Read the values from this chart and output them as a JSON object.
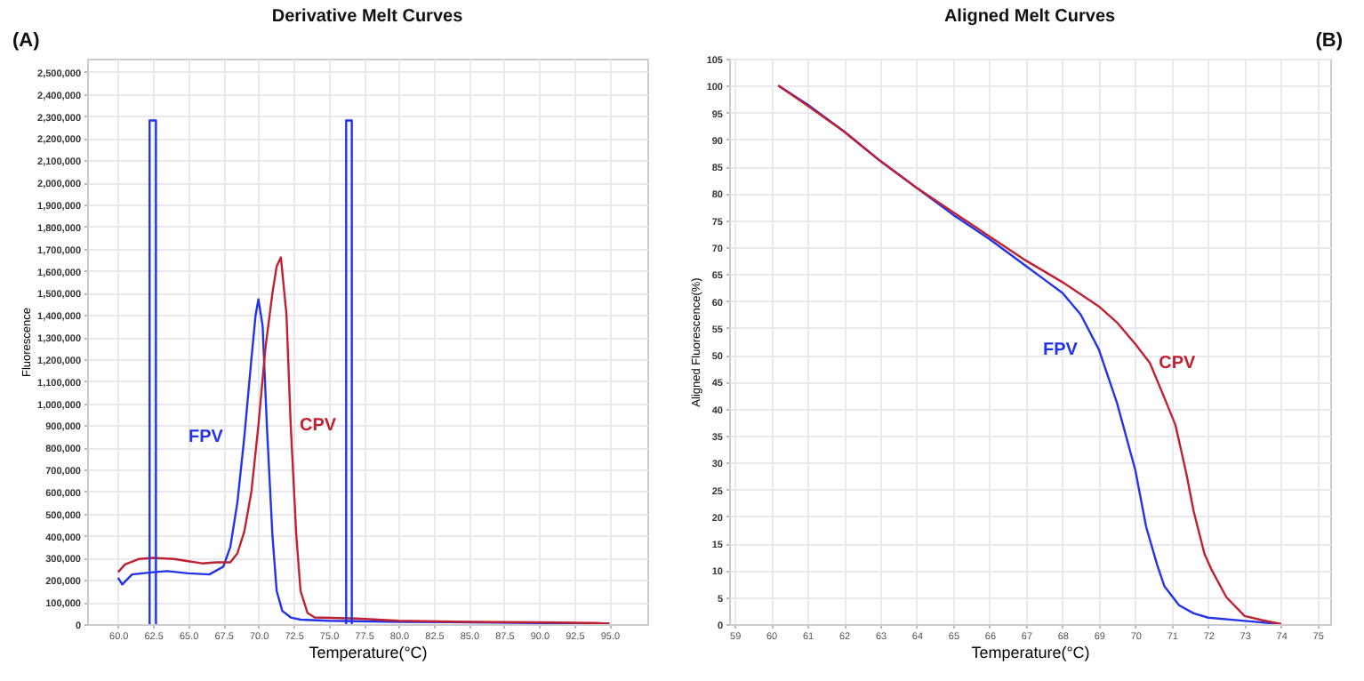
{
  "chart_data": [
    {
      "type": "line",
      "title": "Derivative Melt Curves",
      "subtitle": "(A)",
      "xlabel": "Temperature(°C)",
      "ylabel": "Fluorescence",
      "xlim": [
        57.8,
        97.7
      ],
      "ylim": [
        0,
        2560000
      ],
      "xticks": [
        {
          "value": 60,
          "label": "60.0"
        },
        {
          "value": 62.5,
          "label": "62.5"
        },
        {
          "value": 65,
          "label": "65.0"
        },
        {
          "value": 67.5,
          "label": "67.5"
        },
        {
          "value": 70,
          "label": "70.0"
        },
        {
          "value": 72.5,
          "label": "72.5"
        },
        {
          "value": 75,
          "label": "75.0"
        },
        {
          "value": 77.5,
          "label": "77.5"
        },
        {
          "value": 80,
          "label": "80.0"
        },
        {
          "value": 82.5,
          "label": "82.5"
        },
        {
          "value": 85,
          "label": "85.0"
        },
        {
          "value": 87.5,
          "label": "87.5"
        },
        {
          "value": 90,
          "label": "90.0"
        },
        {
          "value": 92.5,
          "label": "92.5"
        },
        {
          "value": 95,
          "label": "95.0"
        }
      ],
      "yticks": [
        0,
        {
          "value": 100000,
          "label": "100,000"
        },
        {
          "value": 200000,
          "label": "200,000"
        },
        {
          "value": 300000,
          "label": "300,000"
        },
        {
          "value": 400000,
          "label": "400,000"
        },
        {
          "value": 500000,
          "label": "500,000"
        },
        {
          "value": 600000,
          "label": "600,000"
        },
        {
          "value": 700000,
          "label": "700,000"
        },
        {
          "value": 800000,
          "label": "800,000"
        },
        {
          "value": 900000,
          "label": "900,000"
        },
        {
          "value": 1000000,
          "label": "1,000,000"
        },
        {
          "value": 1100000,
          "label": "1,100,000"
        },
        {
          "value": 1200000,
          "label": "1,200,000"
        },
        {
          "value": 1300000,
          "label": "1,300,000"
        },
        {
          "value": 1400000,
          "label": "1,400,000"
        },
        {
          "value": 1500000,
          "label": "1,500,000"
        },
        {
          "value": 1600000,
          "label": "1,600,000"
        },
        {
          "value": 1700000,
          "label": "1,700,000"
        },
        {
          "value": 1800000,
          "label": "1,800,000"
        },
        {
          "value": 1900000,
          "label": "1,900,000"
        },
        {
          "value": 2000000,
          "label": "2,000,000"
        },
        {
          "value": 2100000,
          "label": "2,100,000"
        },
        {
          "value": 2200000,
          "label": "2,200,000"
        },
        {
          "value": 2300000,
          "label": "2,300,000"
        },
        {
          "value": 2400000,
          "label": "2,400,000"
        },
        {
          "value": 2500000,
          "label": "2,500,000"
        }
      ],
      "grid": true,
      "marker": "none",
      "line_style": "solid",
      "series": [
        {
          "name": "FPV",
          "color": "#2233ee",
          "x": [
            60,
            60.3,
            61,
            62.5,
            63.5,
            65,
            66.5,
            67.5,
            68,
            68.5,
            69,
            69.5,
            69.8,
            70,
            70.3,
            70.6,
            71,
            71.3,
            71.7,
            72.3,
            73,
            75,
            80,
            85,
            90,
            95
          ],
          "values": [
            210000,
            180000,
            225000,
            235000,
            240000,
            230000,
            225000,
            260000,
            350000,
            550000,
            850000,
            1200000,
            1400000,
            1470000,
            1350000,
            900000,
            400000,
            150000,
            60000,
            30000,
            20000,
            15000,
            10000,
            8000,
            5000,
            2000
          ]
        },
        {
          "name": "CPV",
          "color": "#c02030",
          "x": [
            60,
            60.5,
            61.5,
            62.5,
            64,
            65,
            66,
            67,
            68,
            68.5,
            69,
            69.5,
            70,
            70.5,
            71,
            71.3,
            71.6,
            72,
            72.3,
            72.7,
            73,
            73.5,
            74,
            77,
            80,
            85,
            90,
            94,
            95
          ],
          "values": [
            235000,
            270000,
            295000,
            300000,
            295000,
            285000,
            275000,
            280000,
            280000,
            320000,
            420000,
            600000,
            900000,
            1250000,
            1500000,
            1620000,
            1660000,
            1400000,
            900000,
            400000,
            150000,
            50000,
            30000,
            25000,
            15000,
            10000,
            8000,
            5000,
            2000
          ]
        },
        {
          "type": "line",
          "color": "#2233ee",
          "x": [
            62.25,
            62.25,
            62.7,
            62.7
          ],
          "values": [
            0,
            2280000,
            2280000,
            0
          ]
        },
        {
          "type": "line",
          "color": "#2233ee",
          "x": [
            76.25,
            76.25,
            76.65,
            76.65
          ],
          "values": [
            0,
            2280000,
            2280000,
            0
          ]
        }
      ]
    },
    {
      "type": "line",
      "title": "Aligned Melt Curves",
      "subtitle": "(B)",
      "xlabel": "Temperature(°C)",
      "ylabel": "Aligned Fluorescence(%)",
      "xlim": [
        58.85,
        75.35
      ],
      "ylim": [
        0,
        105
      ],
      "xticks": [
        59,
        60,
        61,
        62,
        63,
        64,
        65,
        66,
        67,
        68,
        69,
        70,
        71,
        72,
        73,
        74,
        75
      ],
      "yticks": [
        0,
        5,
        10,
        15,
        20,
        25,
        30,
        35,
        40,
        45,
        50,
        55,
        60,
        65,
        70,
        75,
        80,
        85,
        90,
        95,
        100,
        105
      ],
      "grid": true,
      "marker": "none",
      "line_style": "solid",
      "series": [
        {
          "name": "FPV",
          "color": "#2233ee",
          "x": [
            60.2,
            61,
            62,
            63,
            64,
            65,
            66,
            67,
            67.5,
            68,
            68.5,
            69,
            69.5,
            70,
            70.3,
            70.6,
            70.8,
            71.2,
            71.6,
            72,
            73,
            74
          ],
          "values": [
            100,
            96.5,
            91.5,
            86,
            81,
            76,
            71.5,
            66.5,
            64,
            61.5,
            57.5,
            51,
            41,
            28.6,
            18,
            11,
            7,
            3.5,
            2,
            1.2,
            0.6,
            0
          ]
        },
        {
          "name": "CPV",
          "color": "#c02030",
          "x": [
            60.2,
            61,
            62,
            63,
            64,
            65,
            66,
            67,
            68,
            69,
            69.5,
            70,
            70.4,
            70.8,
            71.1,
            71.4,
            71.6,
            71.9,
            72.1,
            72.5,
            73,
            73.5,
            74
          ],
          "values": [
            100,
            96.3,
            91.5,
            86,
            81,
            76.5,
            72,
            67.5,
            63.5,
            59,
            56,
            52,
            48.5,
            42,
            37,
            28,
            21,
            13,
            10,
            5,
            1.5,
            0.7,
            0
          ]
        }
      ]
    }
  ]
}
